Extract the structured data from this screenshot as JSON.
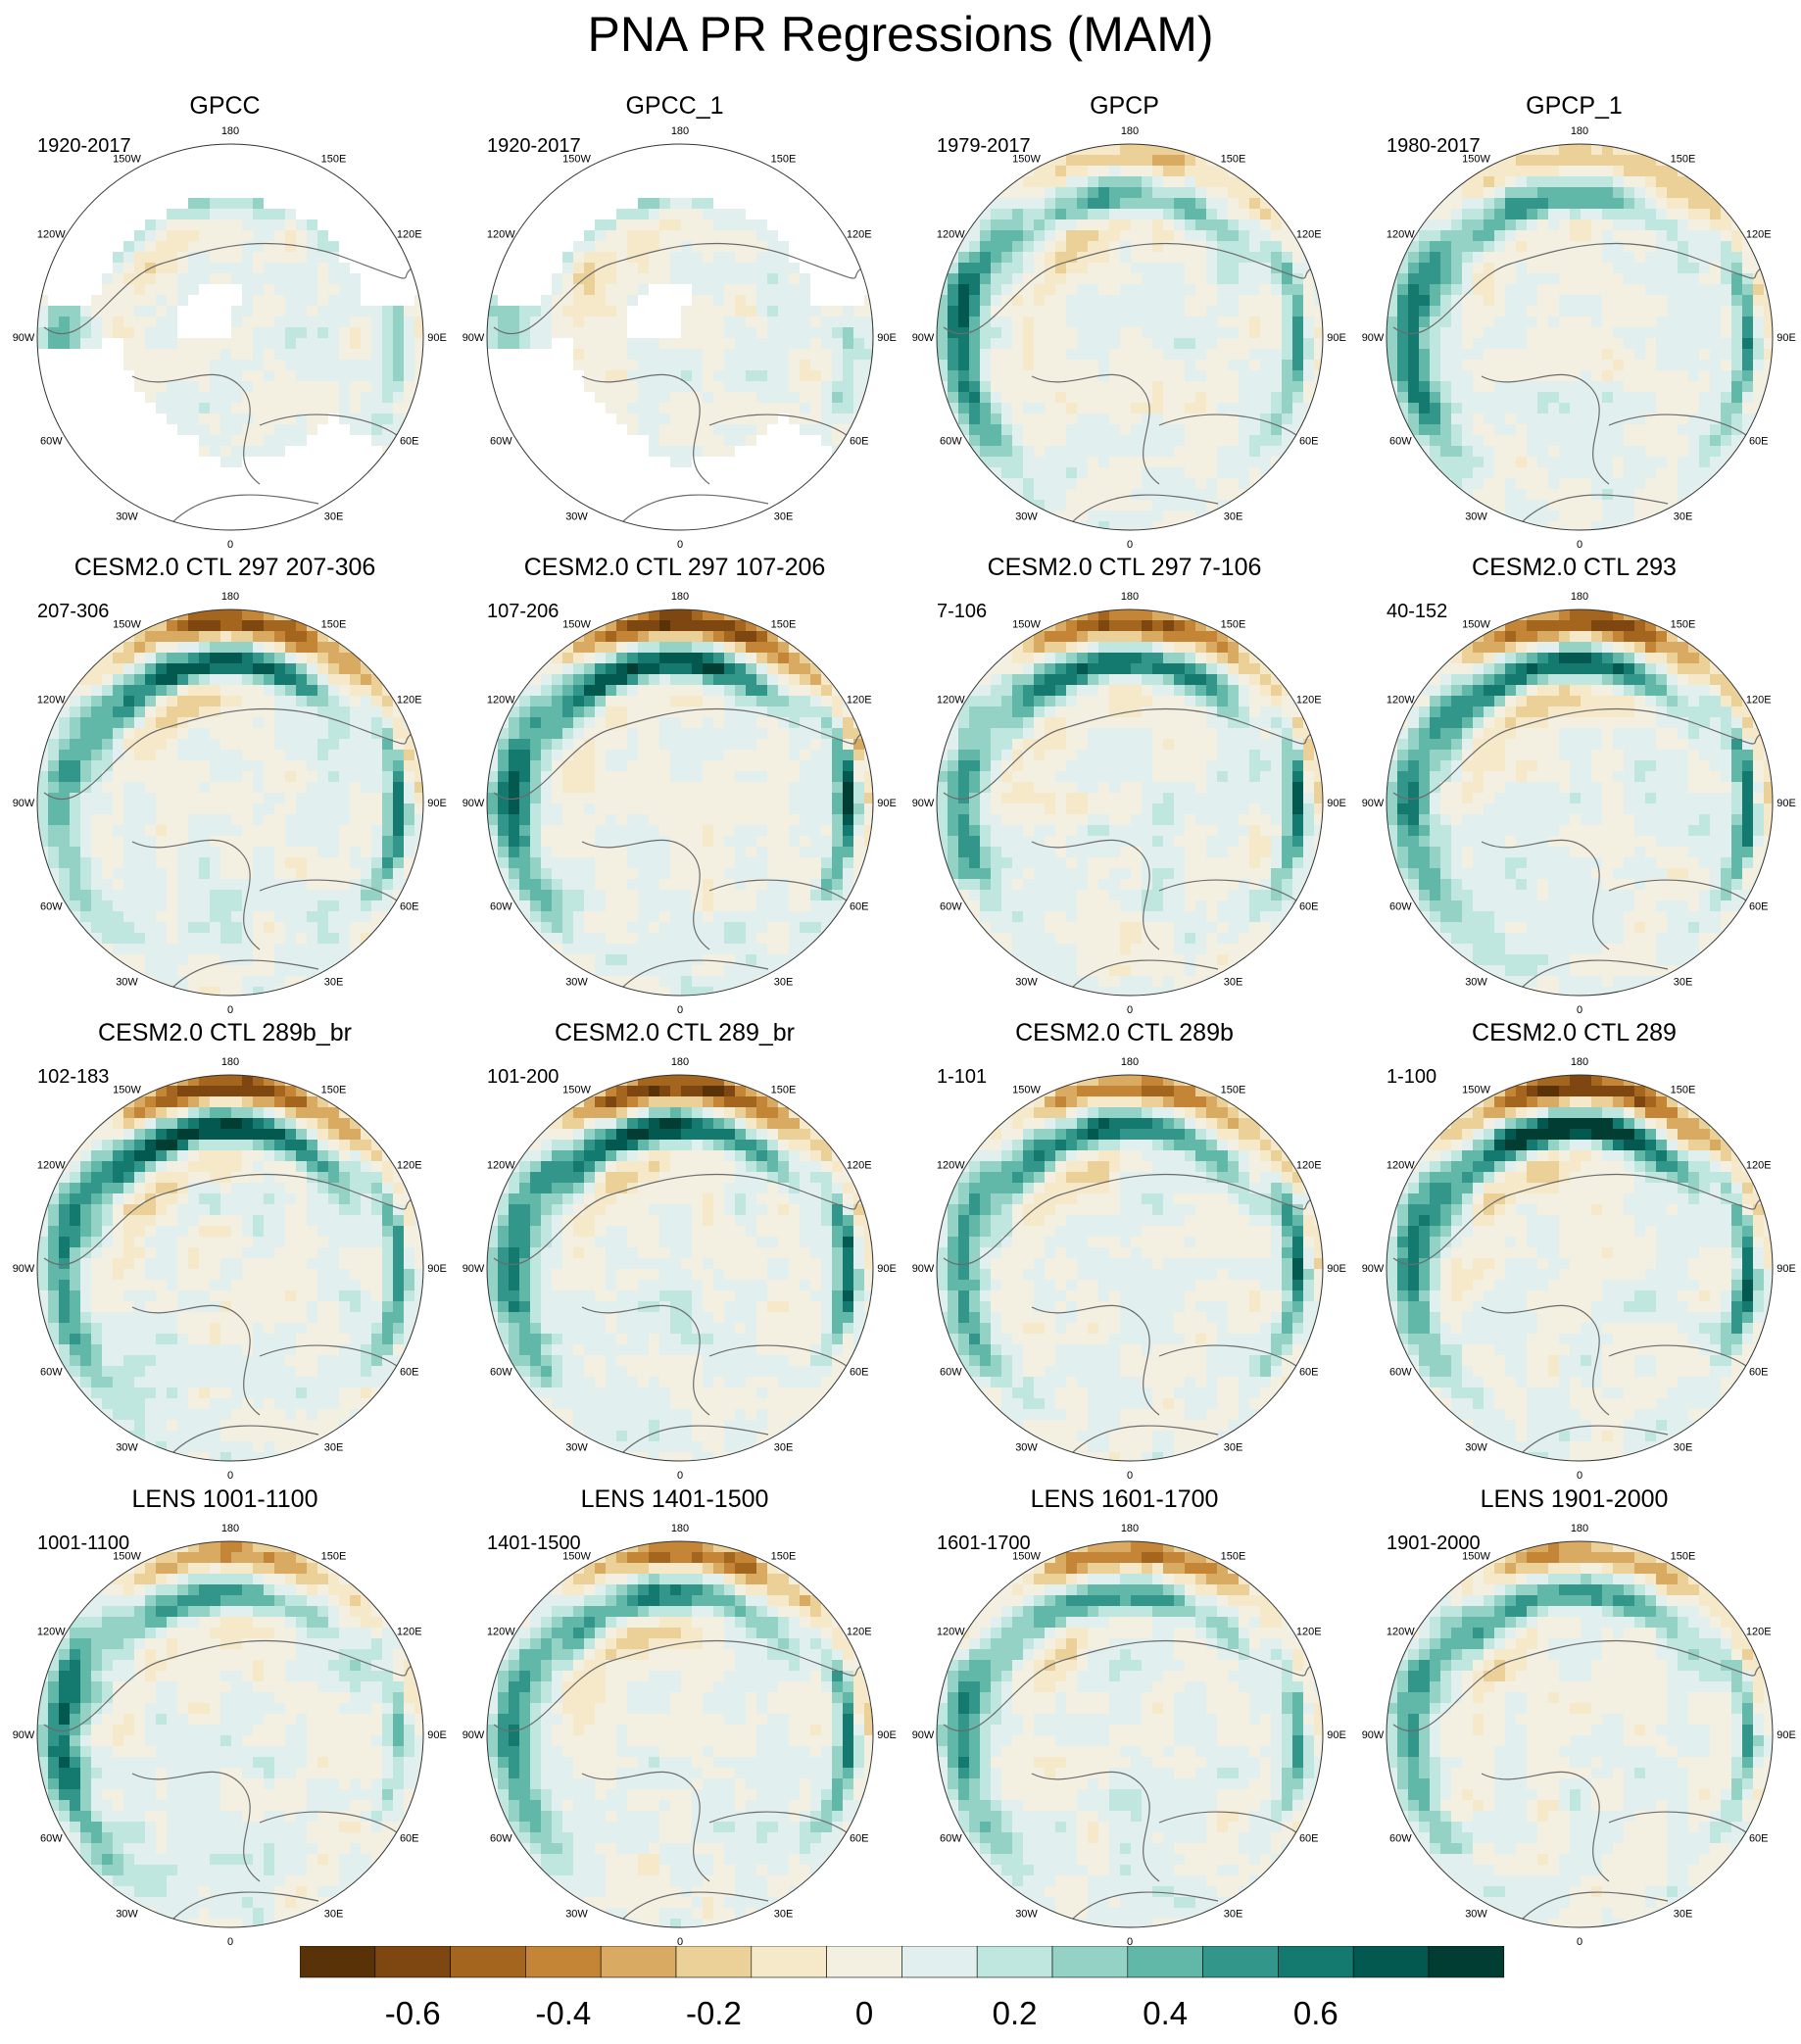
{
  "title": "PNA PR Regressions (MAM)",
  "lon_labels": [
    "180",
    "150E",
    "120E",
    "90E",
    "60E",
    "30E",
    "0",
    "30W",
    "60W",
    "90W",
    "120W",
    "150W"
  ],
  "colorbar": {
    "colors": [
      "#5a3208",
      "#7e4711",
      "#a4651f",
      "#c48537",
      "#d9aa62",
      "#ebd098",
      "#f5e9c9",
      "#f3f0e2",
      "#e1efee",
      "#bfe6df",
      "#93d2c5",
      "#62b8a8",
      "#33968b",
      "#147a6f",
      "#03594f",
      "#013d33"
    ],
    "ticks": [
      "-0.6",
      "-0.4",
      "-0.2",
      "0",
      "0.2",
      "0.4",
      "0.6"
    ],
    "tick_positions": [
      1.5,
      3.5,
      5.5,
      7.5,
      9.5,
      11.5,
      13.5
    ]
  },
  "panels": [
    {
      "title": "GPCC",
      "years": "1920-2017",
      "masked": true,
      "lat_band": -0.08,
      "dipole": 0.1,
      "belt": 0.35,
      "west": 0.3,
      "east": 0.2
    },
    {
      "title": "GPCC_1",
      "years": "1920-2017",
      "masked": true,
      "lat_band": -0.08,
      "dipole": 0.1,
      "belt": 0.3,
      "west": 0.3,
      "east": 0.15
    },
    {
      "title": "GPCP",
      "years": "1979-2017",
      "masked": false,
      "lat_band": -0.35,
      "dipole": 0.3,
      "belt": 0.35,
      "west": 0.6,
      "east": 0.5
    },
    {
      "title": "GPCP_1",
      "years": "1980-2017",
      "masked": false,
      "lat_band": -0.35,
      "dipole": 0.3,
      "belt": 0.35,
      "west": 0.55,
      "east": 0.55
    },
    {
      "title": "CESM2.0 CTL 297 207-306",
      "years": "207-306",
      "masked": false,
      "lat_band": -0.7,
      "dipole": 0.55,
      "belt": 0.5,
      "west": 0.35,
      "east": 0.6
    },
    {
      "title": "CESM2.0 CTL 297 107-206",
      "years": "107-206",
      "masked": false,
      "lat_band": -0.75,
      "dipole": 0.6,
      "belt": 0.55,
      "west": 0.55,
      "east": 0.7
    },
    {
      "title": "CESM2.0 CTL 297 7-106",
      "years": "7-106",
      "masked": false,
      "lat_band": -0.65,
      "dipole": 0.55,
      "belt": 0.45,
      "west": 0.4,
      "east": 0.6
    },
    {
      "title": "CESM2.0 CTL 293",
      "years": "40-152",
      "masked": false,
      "lat_band": -0.7,
      "dipole": 0.55,
      "belt": 0.5,
      "west": 0.5,
      "east": 0.65
    },
    {
      "title": "CESM2.0 CTL 289b_br",
      "years": "102-183",
      "masked": false,
      "lat_band": -0.75,
      "dipole": 0.65,
      "belt": 0.6,
      "west": 0.5,
      "east": 0.55
    },
    {
      "title": "CESM2.0 CTL 289_br",
      "years": "101-200",
      "masked": false,
      "lat_band": -0.75,
      "dipole": 0.6,
      "belt": 0.55,
      "west": 0.5,
      "east": 0.6
    },
    {
      "title": "CESM2.0 CTL 289b",
      "years": "1-101",
      "masked": false,
      "lat_band": -0.6,
      "dipole": 0.5,
      "belt": 0.45,
      "west": 0.45,
      "east": 0.6
    },
    {
      "title": "CESM2.0 CTL 289",
      "years": "1-100",
      "masked": false,
      "lat_band": -0.8,
      "dipole": 0.7,
      "belt": 0.55,
      "west": 0.5,
      "east": 0.65
    },
    {
      "title": "LENS 1001-1100",
      "years": "1001-1100",
      "masked": false,
      "lat_band": -0.45,
      "dipole": 0.35,
      "belt": 0.35,
      "west": 0.55,
      "east": 0.3
    },
    {
      "title": "LENS 1401-1500",
      "years": "1401-1500",
      "masked": false,
      "lat_band": -0.6,
      "dipole": 0.4,
      "belt": 0.4,
      "west": 0.5,
      "east": 0.55
    },
    {
      "title": "LENS 1601-1700",
      "years": "1601-1700",
      "masked": false,
      "lat_band": -0.5,
      "dipole": 0.35,
      "belt": 0.35,
      "west": 0.4,
      "east": 0.4
    },
    {
      "title": "LENS 1901-2000",
      "years": "1901-2000",
      "masked": false,
      "lat_band": -0.5,
      "dipole": 0.4,
      "belt": 0.4,
      "west": 0.45,
      "east": 0.5
    }
  ]
}
